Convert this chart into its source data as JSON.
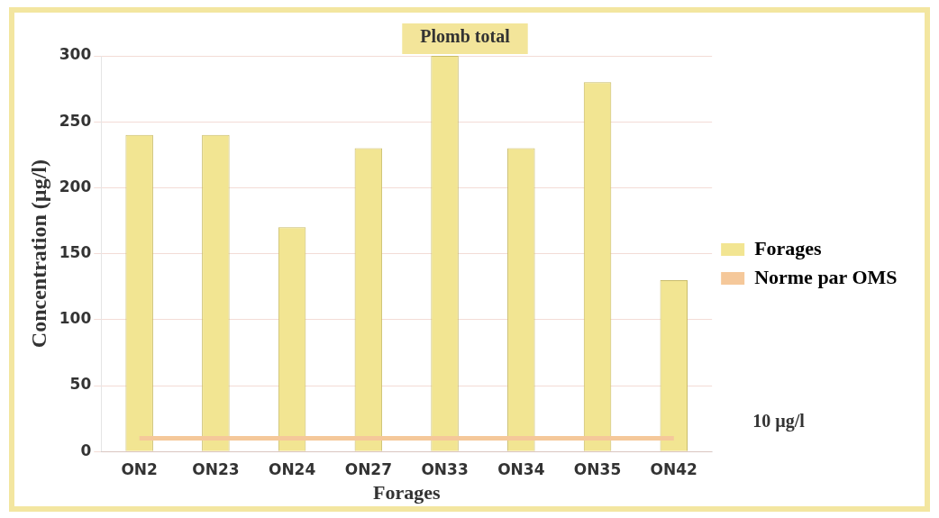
{
  "chart_data": {
    "type": "bar",
    "title": "Plomb total",
    "xlabel": "Forages",
    "ylabel": "Concentration (µg/l)",
    "categories": [
      "ON2",
      "ON23",
      "ON24",
      "ON27",
      "ON33",
      "ON34",
      "ON35",
      "ON42"
    ],
    "series": [
      {
        "name": "Forages",
        "color": "#f2e592",
        "values": [
          240,
          240,
          170,
          230,
          300,
          230,
          280,
          130
        ]
      },
      {
        "name": "Norme par OMS",
        "type": "line",
        "color": "#f5c89a",
        "values": [
          10,
          10,
          10,
          10,
          10,
          10,
          10,
          10
        ]
      }
    ],
    "annotations": [
      "10 µg/l"
    ],
    "ylim": [
      0,
      300
    ],
    "yticks": [
      0,
      50,
      100,
      150,
      200,
      250,
      300
    ],
    "grid": "y",
    "legend": "right",
    "marker": "none"
  }
}
